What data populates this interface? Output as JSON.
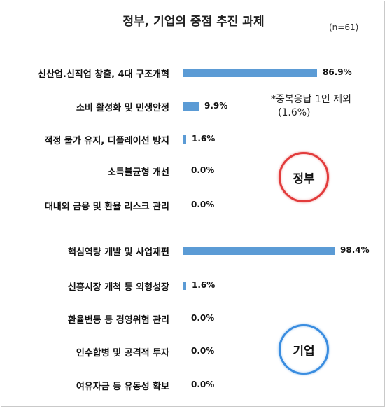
{
  "title": "정부, 기업의 중점 추진 과제",
  "sample_note": "(n=61)",
  "footnote": {
    "line1": "*중복응답 1인 제외",
    "line2": "(1.6%)"
  },
  "badges": {
    "government": "정부",
    "corporate": "기업"
  },
  "colors": {
    "bar": "#5b9bd5",
    "government_ring": "#e23c3c",
    "corporate_ring": "#3a8de0"
  },
  "chart_data": [
    {
      "type": "bar",
      "orientation": "horizontal",
      "group": "정부",
      "categories": [
        "신산업.신직업 창출, 4대 구조개혁",
        "소비 활성화 및 민생안정",
        "적정 물가 유지, 디플레이션 방지",
        "소득불균형 개선",
        "대내외 금융 및 환율 리스크 관리"
      ],
      "values": [
        86.9,
        9.9,
        1.6,
        0.0,
        0.0
      ],
      "value_labels": [
        "86.9%",
        "9.9%",
        "1.6%",
        "0.0%",
        "0.0%"
      ],
      "xlim": [
        0,
        100
      ],
      "grid": false
    },
    {
      "type": "bar",
      "orientation": "horizontal",
      "group": "기업",
      "categories": [
        "핵심역량 개발 및 사업재편",
        "신흥시장 개척 등 외형성장",
        "환율변동 등 경영위험 관리",
        "인수합병 및 공격적 투자",
        "여유자금 등 유동성 확보"
      ],
      "values": [
        98.4,
        1.6,
        0.0,
        0.0,
        0.0
      ],
      "value_labels": [
        "98.4%",
        "1.6%",
        "0.0%",
        "0.0%",
        "0.0%"
      ],
      "xlim": [
        0,
        100
      ],
      "grid": false
    }
  ]
}
